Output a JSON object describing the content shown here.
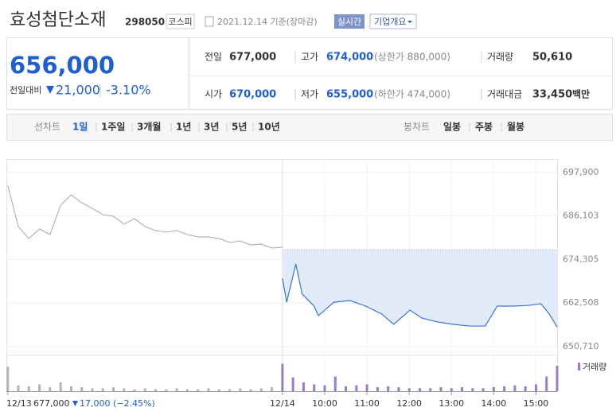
{
  "header": {
    "name": "효성첨단소재",
    "code": "298050",
    "market": "코스피",
    "date": "2021.12.14 기준(장마감)",
    "realtime": "실시간",
    "overview": "기업개요"
  },
  "price": {
    "current": "656,000",
    "change_label": "전일대비",
    "change": "21,000",
    "change_rate": "-3.10%"
  },
  "stats": [
    [
      {
        "label": "전일",
        "value": "677,000"
      },
      {
        "label": "고가",
        "value": "674,000",
        "note": "(상한가 880,000)"
      },
      {
        "label": "거래량",
        "value": "50,610"
      }
    ],
    [
      {
        "label": "시가",
        "value": "670,000"
      },
      {
        "label": "저가",
        "value": "655,000",
        "note": "(하한가 474,000)"
      },
      {
        "label": "거래대금",
        "value": "33,450",
        "unit": "백만"
      }
    ]
  ],
  "tabs": {
    "line_label": "선차트",
    "line_periods": [
      "1일",
      "1주일",
      "3개월",
      "1년",
      "3년",
      "5년",
      "10년"
    ],
    "candle_label": "봉차트",
    "candle_periods": [
      "일봉",
      "주봉",
      "월봉"
    ]
  },
  "footer": {
    "close": "677,000",
    "change": "17,000",
    "rate": "(−2.45%)"
  },
  "chart_data": [
    {
      "type": "line",
      "xlim": [
        -392,
        390
      ],
      "xticks": [
        {
          "value": -390,
          "label": "12/13"
        },
        {
          "value": 0,
          "label": "12/14"
        },
        {
          "value": 60,
          "label": "10:00"
        },
        {
          "value": 120,
          "label": "11:00"
        },
        {
          "value": 180,
          "label": "12:00"
        },
        {
          "value": 240,
          "label": "13:00"
        },
        {
          "value": 300,
          "label": "14:00"
        },
        {
          "value": 360,
          "label": "15:00"
        }
      ],
      "ylim": [
        650710,
        697900
      ],
      "yticks": [
        {
          "value": 650710,
          "label": "650,710"
        },
        {
          "value": 662508,
          "label": "662,508"
        },
        {
          "value": 674305,
          "label": "674,305"
        },
        {
          "value": 686103,
          "label": "686,103"
        },
        {
          "value": 697900,
          "label": "697,900"
        }
      ],
      "reference_line": 677000,
      "fill": "#e1ebfa",
      "series": [
        {
          "color": "#b4b4b4",
          "x": [
            -390,
            -375,
            -360,
            -345,
            -330,
            -315,
            -300,
            -285,
            -270,
            -255,
            -240,
            -225,
            -210,
            -195,
            -180,
            -165,
            -150,
            -135,
            -120,
            -105,
            -90,
            -75,
            -60,
            -45,
            -30,
            -15,
            0
          ],
          "values": [
            694450,
            683250,
            680000,
            682600,
            681100,
            689050,
            691850,
            689700,
            688200,
            686500,
            686050,
            683900,
            685400,
            683250,
            682150,
            681750,
            682150,
            681100,
            680450,
            680450,
            680000,
            678950,
            679350,
            678300,
            678500,
            677450,
            677650
          ]
        },
        {
          "color": "#3a72d6",
          "x": [
            0,
            6,
            19,
            28,
            45,
            51,
            73,
            96,
            118,
            141,
            158,
            181,
            198,
            220,
            243,
            265,
            288,
            305,
            328,
            350,
            367,
            379,
            390
          ],
          "values": [
            669250,
            662750,
            673100,
            664950,
            661700,
            659100,
            662750,
            663200,
            661700,
            659550,
            656750,
            660600,
            658450,
            657400,
            656750,
            656300,
            656300,
            661700,
            661700,
            661900,
            662350,
            659550,
            656000
          ]
        }
      ]
    },
    {
      "type": "bar",
      "legend": "거래량",
      "ylim": [
        0,
        3000
      ],
      "x": [
        -390,
        -375,
        -360,
        -345,
        -330,
        -315,
        -300,
        -285,
        -270,
        -255,
        -240,
        -225,
        -210,
        -195,
        -180,
        -165,
        -150,
        -135,
        -120,
        -105,
        -90,
        -75,
        -60,
        -45,
        -30,
        -15,
        0,
        15,
        30,
        45,
        60,
        75,
        90,
        105,
        120,
        135,
        150,
        165,
        180,
        195,
        210,
        225,
        240,
        255,
        270,
        285,
        300,
        315,
        330,
        345,
        360,
        375,
        390
      ],
      "values": [
        2500,
        600,
        500,
        700,
        400,
        900,
        500,
        400,
        300,
        300,
        400,
        300,
        200,
        300,
        200,
        200,
        300,
        200,
        200,
        300,
        200,
        200,
        300,
        200,
        300,
        400,
        2800,
        1400,
        900,
        700,
        600,
        1500,
        500,
        600,
        700,
        400,
        500,
        400,
        300,
        300,
        300,
        400,
        300,
        400,
        300,
        300,
        400,
        500,
        600,
        500,
        700,
        1500,
        2600
      ],
      "colors": {
        "prev": "#b4b4b4",
        "today": "#9a7cc8"
      }
    }
  ]
}
